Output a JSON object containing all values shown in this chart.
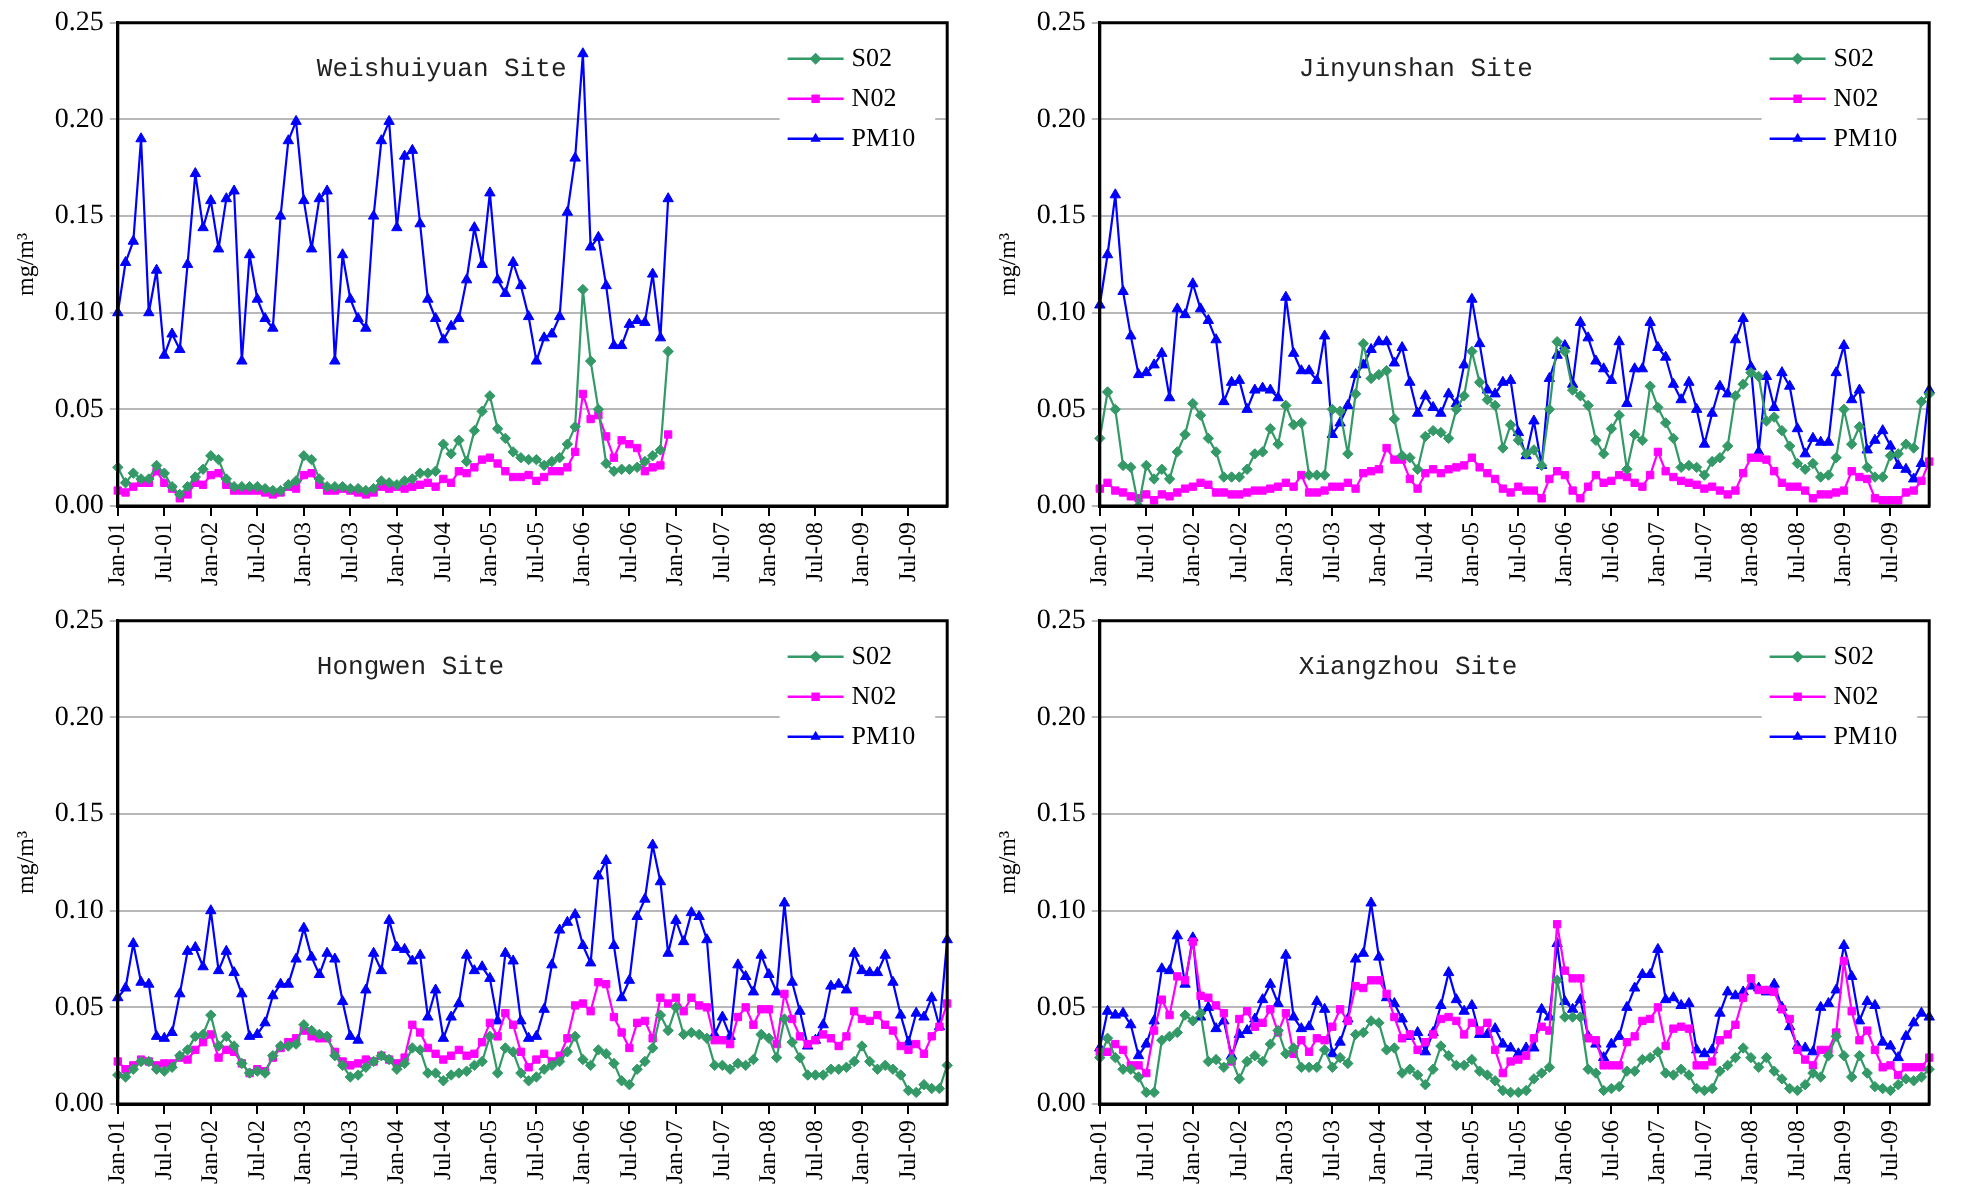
{
  "chart_data": [
    {
      "type": "line",
      "title": "Weishuiyuan Site",
      "ylabel": "mg/m³",
      "grid": "y",
      "legend": "top right",
      "categories": [
        "Jan-01",
        null,
        null,
        null,
        null,
        null,
        "Jul-01",
        null,
        null,
        null,
        null,
        null,
        "Jan-02",
        null,
        null,
        null,
        null,
        null,
        "Jul-02",
        null,
        null,
        null,
        null,
        null,
        "Jan-03",
        null,
        null,
        null,
        null,
        null,
        "Jul-03",
        null,
        null,
        null,
        null,
        null,
        "Jan-04",
        null,
        null,
        null,
        null,
        null,
        "Jul-04",
        null,
        null,
        null,
        null,
        null,
        "Jan-05",
        null,
        null,
        null,
        null,
        null,
        "Jul-05",
        null,
        null,
        null,
        null,
        null,
        "Jan-06",
        null,
        null,
        null,
        null,
        null,
        "Jul-06",
        null,
        null,
        null,
        null,
        null,
        "Jan-07",
        null,
        null,
        null,
        null,
        null,
        "Jul-07",
        null,
        null,
        null,
        null,
        null,
        "Jan-08",
        null,
        null,
        null,
        null,
        null,
        "Jul-08",
        null,
        null,
        null,
        null,
        null,
        "Jan-09",
        null,
        null,
        null,
        null,
        null,
        "Jul-09",
        null,
        null,
        null,
        null,
        null
      ],
      "ylim": [
        0,
        0.25
      ],
      "yticks": [
        {
          "value": 0,
          "label": "0.00"
        },
        {
          "value": 0.05,
          "label": "0.05"
        },
        {
          "value": 0.1,
          "label": "0.10"
        },
        {
          "value": 0.15,
          "label": "0.15"
        },
        {
          "value": 0.2,
          "label": "0.20"
        },
        {
          "value": 0.25,
          "label": "0.25"
        }
      ],
      "series": [
        {
          "name": "S02",
          "color": "#339966",
          "marker": "diamond",
          "values": [
            0.02,
            0.012,
            0.017,
            0.014,
            0.014,
            0.021,
            0.017,
            0.01,
            0.006,
            0.01,
            0.015,
            0.019,
            0.026,
            0.024,
            0.014,
            0.01,
            0.01,
            0.01,
            0.01,
            0.009,
            0.008,
            0.008,
            0.011,
            0.013,
            0.026,
            0.024,
            0.014,
            0.01,
            0.01,
            0.01,
            0.009,
            0.009,
            0.008,
            0.009,
            0.013,
            0.012,
            0.011,
            0.013,
            0.014,
            0.017,
            0.017,
            0.018,
            0.032,
            0.027,
            0.034,
            0.023,
            0.039,
            0.049,
            0.057,
            0.04,
            0.035,
            0.028,
            0.025,
            0.024,
            0.024,
            0.021,
            0.023,
            0.025,
            0.032,
            0.041,
            0.112,
            0.075,
            0.05,
            0.022,
            0.018,
            0.019,
            0.019,
            0.02,
            0.023,
            0.026,
            0.029,
            0.08,
            null,
            null,
            null,
            null,
            null,
            null,
            null,
            null,
            null,
            null,
            null,
            null,
            null,
            null,
            null,
            null,
            null,
            null,
            null,
            null,
            null,
            null,
            null,
            null,
            null,
            null,
            null,
            null,
            null,
            null,
            null,
            null,
            null,
            null,
            null,
            null
          ]
        },
        {
          "name": "N02",
          "color": "#ff00ff",
          "marker": "square",
          "values": [
            0.008,
            0.007,
            0.01,
            0.012,
            0.012,
            0.018,
            0.012,
            0.009,
            0.004,
            0.006,
            0.012,
            0.011,
            0.016,
            0.017,
            0.011,
            0.008,
            0.008,
            0.008,
            0.008,
            0.007,
            0.006,
            0.007,
            0.01,
            0.009,
            0.016,
            0.017,
            0.011,
            0.008,
            0.008,
            0.009,
            0.008,
            0.007,
            0.006,
            0.007,
            0.01,
            0.009,
            0.01,
            0.009,
            0.01,
            0.011,
            0.012,
            0.01,
            0.014,
            0.012,
            0.018,
            0.017,
            0.02,
            0.024,
            0.025,
            0.022,
            0.018,
            0.015,
            0.015,
            0.016,
            0.013,
            0.015,
            0.018,
            0.018,
            0.02,
            0.028,
            0.058,
            0.045,
            0.047,
            0.036,
            0.025,
            0.034,
            0.032,
            0.03,
            0.018,
            0.02,
            0.021,
            0.037,
            null,
            null,
            null,
            null,
            null,
            null,
            null,
            null,
            null,
            null,
            null,
            null,
            null,
            null,
            null,
            null,
            null,
            null,
            null,
            null,
            null,
            null,
            null,
            null,
            null,
            null,
            null,
            null,
            null,
            null,
            null,
            null,
            null,
            null,
            null,
            null
          ]
        },
        {
          "name": "PM10",
          "color": "#0000ff",
          "marker": "triangle",
          "values": [
            0.1,
            0.126,
            0.137,
            0.19,
            0.1,
            0.122,
            0.078,
            0.089,
            0.081,
            0.125,
            0.172,
            0.144,
            0.158,
            0.133,
            0.159,
            0.163,
            0.075,
            0.13,
            0.107,
            0.097,
            0.092,
            0.15,
            0.189,
            0.199,
            0.158,
            0.133,
            0.159,
            0.163,
            0.075,
            0.13,
            0.107,
            0.097,
            0.092,
            0.15,
            0.189,
            0.199,
            0.144,
            0.181,
            0.184,
            0.146,
            0.107,
            0.097,
            0.086,
            0.093,
            0.097,
            0.117,
            0.144,
            0.125,
            0.162,
            0.117,
            0.11,
            0.126,
            0.114,
            0.098,
            0.075,
            0.087,
            0.089,
            0.098,
            0.152,
            0.18,
            0.234,
            0.134,
            0.139,
            0.114,
            0.083,
            0.083,
            0.094,
            0.096,
            0.095,
            0.12,
            0.087,
            0.159,
            null,
            null,
            null,
            null,
            null,
            null,
            null,
            null,
            null,
            null,
            null,
            null,
            null,
            null,
            null,
            null,
            null,
            null,
            null,
            null,
            null,
            null,
            null,
            null,
            null,
            null,
            null,
            null,
            null,
            null,
            null,
            null,
            null,
            null,
            null,
            null
          ]
        }
      ]
    },
    {
      "type": "line",
      "title": "Jinyunshan Site",
      "ylabel": "mg/m³",
      "grid": "y",
      "legend": "top right",
      "categories": [
        "Jan-01",
        null,
        null,
        null,
        null,
        null,
        "Jul-01",
        null,
        null,
        null,
        null,
        null,
        "Jan-02",
        null,
        null,
        null,
        null,
        null,
        "Jul-02",
        null,
        null,
        null,
        null,
        null,
        "Jan-03",
        null,
        null,
        null,
        null,
        null,
        "Jul-03",
        null,
        null,
        null,
        null,
        null,
        "Jan-04",
        null,
        null,
        null,
        null,
        null,
        "Jul-04",
        null,
        null,
        null,
        null,
        null,
        "Jan-05",
        null,
        null,
        null,
        null,
        null,
        "Jul-05",
        null,
        null,
        null,
        null,
        null,
        "Jan-06",
        null,
        null,
        null,
        null,
        null,
        "Jul-06",
        null,
        null,
        null,
        null,
        null,
        "Jan-07",
        null,
        null,
        null,
        null,
        null,
        "Jul-07",
        null,
        null,
        null,
        null,
        null,
        "Jan-08",
        null,
        null,
        null,
        null,
        null,
        "Jul-08",
        null,
        null,
        null,
        null,
        null,
        "Jan-09",
        null,
        null,
        null,
        null,
        null,
        "Jul-09",
        null,
        null,
        null,
        null,
        null
      ],
      "ylim": [
        0,
        0.25
      ],
      "yticks": [
        {
          "value": 0,
          "label": "0.00"
        },
        {
          "value": 0.05,
          "label": "0.05"
        },
        {
          "value": 0.1,
          "label": "0.10"
        },
        {
          "value": 0.15,
          "label": "0.15"
        },
        {
          "value": 0.2,
          "label": "0.20"
        },
        {
          "value": 0.25,
          "label": "0.25"
        }
      ],
      "series": [
        {
          "name": "S02",
          "color": "#339966",
          "marker": "diamond",
          "values": [
            0.035,
            0.059,
            0.05,
            0.021,
            0.02,
            0.0,
            0.021,
            0.014,
            0.019,
            0.014,
            0.028,
            0.037,
            0.053,
            0.047,
            0.035,
            0.028,
            0.015,
            0.015,
            0.015,
            0.019,
            0.027,
            0.028,
            0.04,
            0.032,
            0.052,
            0.042,
            0.043,
            0.016,
            0.016,
            0.016,
            0.05,
            0.049,
            0.027,
            0.058,
            0.084,
            0.066,
            0.068,
            0.07,
            0.045,
            0.026,
            0.025,
            0.019,
            0.036,
            0.039,
            0.038,
            0.035,
            0.05,
            0.057,
            0.08,
            0.064,
            0.055,
            0.052,
            0.03,
            0.042,
            0.034,
            0.027,
            0.029,
            0.021,
            0.05,
            0.085,
            0.08,
            0.06,
            0.057,
            0.052,
            0.034,
            0.027,
            0.04,
            0.047,
            0.019,
            0.037,
            0.034,
            0.062,
            0.051,
            0.043,
            0.035,
            0.02,
            0.021,
            0.02,
            0.016,
            0.023,
            0.025,
            0.031,
            0.057,
            0.063,
            0.069,
            0.067,
            0.044,
            0.046,
            0.039,
            0.031,
            0.022,
            0.019,
            0.022,
            0.015,
            0.016,
            0.025,
            0.05,
            0.032,
            0.041,
            0.02,
            0.015,
            0.015,
            0.026,
            0.027,
            0.032,
            0.03,
            0.054,
            0.058
          ]
        },
        {
          "name": "N02",
          "color": "#ff00ff",
          "marker": "square",
          "values": [
            0.009,
            0.012,
            0.008,
            0.007,
            0.005,
            0.004,
            0.006,
            0.003,
            0.006,
            0.005,
            0.007,
            0.009,
            0.01,
            0.012,
            0.011,
            0.007,
            0.007,
            0.006,
            0.006,
            0.007,
            0.008,
            0.008,
            0.009,
            0.01,
            0.012,
            0.01,
            0.016,
            0.007,
            0.007,
            0.008,
            0.01,
            0.01,
            0.012,
            0.009,
            0.017,
            0.018,
            0.019,
            0.03,
            0.024,
            0.024,
            0.014,
            0.009,
            0.017,
            0.019,
            0.017,
            0.019,
            0.02,
            0.021,
            0.025,
            0.02,
            0.017,
            0.014,
            0.009,
            0.007,
            0.01,
            0.008,
            0.008,
            0.004,
            0.014,
            0.018,
            0.016,
            0.008,
            0.004,
            0.01,
            0.016,
            0.012,
            0.013,
            0.016,
            0.015,
            0.012,
            0.01,
            0.016,
            0.028,
            0.018,
            0.015,
            0.013,
            0.012,
            0.011,
            0.009,
            0.01,
            0.008,
            0.006,
            0.008,
            0.017,
            0.025,
            0.025,
            0.024,
            0.018,
            0.012,
            0.01,
            0.01,
            0.008,
            0.004,
            0.006,
            0.006,
            0.007,
            0.008,
            0.018,
            0.015,
            0.014,
            0.004,
            0.003,
            0.003,
            0.003,
            0.007,
            0.008,
            0.013,
            0.023
          ]
        },
        {
          "name": "PM10",
          "color": "#0000ff",
          "marker": "triangle",
          "values": [
            0.104,
            0.13,
            0.161,
            0.111,
            0.088,
            0.068,
            0.069,
            0.073,
            0.079,
            0.056,
            0.102,
            0.099,
            0.115,
            0.102,
            0.096,
            0.086,
            0.054,
            0.064,
            0.065,
            0.05,
            0.06,
            0.061,
            0.06,
            0.056,
            0.108,
            0.079,
            0.07,
            0.07,
            0.065,
            0.088,
            0.037,
            0.043,
            0.052,
            0.068,
            0.073,
            0.081,
            0.085,
            0.085,
            0.074,
            0.082,
            0.064,
            0.048,
            0.057,
            0.051,
            0.048,
            0.058,
            0.053,
            0.073,
            0.107,
            0.084,
            0.06,
            0.058,
            0.064,
            0.065,
            0.038,
            0.026,
            0.044,
            0.021,
            0.066,
            0.078,
            0.083,
            0.063,
            0.095,
            0.087,
            0.075,
            0.071,
            0.065,
            0.085,
            0.053,
            0.071,
            0.071,
            0.095,
            0.082,
            0.077,
            0.063,
            0.055,
            0.064,
            0.05,
            0.032,
            0.048,
            0.062,
            0.058,
            0.086,
            0.097,
            0.072,
            0.028,
            0.067,
            0.051,
            0.069,
            0.062,
            0.04,
            0.027,
            0.035,
            0.033,
            0.033,
            0.069,
            0.083,
            0.055,
            0.06,
            0.029,
            0.034,
            0.039,
            0.031,
            0.021,
            0.019,
            0.014,
            0.022,
            0.06
          ]
        }
      ]
    },
    {
      "type": "line",
      "title": "Hongwen Site",
      "ylabel": "mg/m³",
      "grid": "y",
      "legend": "top right",
      "categories": [
        "Jan-01",
        null,
        null,
        null,
        null,
        null,
        "Jul-01",
        null,
        null,
        null,
        null,
        null,
        "Jan-02",
        null,
        null,
        null,
        null,
        null,
        "Jul-02",
        null,
        null,
        null,
        null,
        null,
        "Jan-03",
        null,
        null,
        null,
        null,
        null,
        "Jul-03",
        null,
        null,
        null,
        null,
        null,
        "Jan-04",
        null,
        null,
        null,
        null,
        null,
        "Jul-04",
        null,
        null,
        null,
        null,
        null,
        "Jan-05",
        null,
        null,
        null,
        null,
        null,
        "Jul-05",
        null,
        null,
        null,
        null,
        null,
        "Jan-06",
        null,
        null,
        null,
        null,
        null,
        "Jul-06",
        null,
        null,
        null,
        null,
        null,
        "Jan-07",
        null,
        null,
        null,
        null,
        null,
        "Jul-07",
        null,
        null,
        null,
        null,
        null,
        "Jan-08",
        null,
        null,
        null,
        null,
        null,
        "Jul-08",
        null,
        null,
        null,
        null,
        null,
        "Jan-09",
        null,
        null,
        null,
        null,
        null,
        "Jul-09",
        null,
        null,
        null,
        null,
        null
      ],
      "ylim": [
        0,
        0.25
      ],
      "yticks": [
        {
          "value": 0,
          "label": "0.00"
        },
        {
          "value": 0.05,
          "label": "0.05"
        },
        {
          "value": 0.1,
          "label": "0.10"
        },
        {
          "value": 0.15,
          "label": "0.15"
        },
        {
          "value": 0.2,
          "label": "0.20"
        },
        {
          "value": 0.25,
          "label": "0.25"
        }
      ],
      "series": [
        {
          "name": "S02",
          "color": "#339966",
          "marker": "diamond",
          "values": [
            0.015,
            0.014,
            0.018,
            0.022,
            0.022,
            0.018,
            0.017,
            0.019,
            0.025,
            0.028,
            0.035,
            0.036,
            0.046,
            0.03,
            0.035,
            0.03,
            0.021,
            0.016,
            0.017,
            0.016,
            0.025,
            0.03,
            0.03,
            0.031,
            0.041,
            0.038,
            0.036,
            0.035,
            0.025,
            0.02,
            0.014,
            0.015,
            0.019,
            0.022,
            0.025,
            0.023,
            0.018,
            0.021,
            0.029,
            0.028,
            0.016,
            0.016,
            0.012,
            0.015,
            0.016,
            0.017,
            0.02,
            0.022,
            0.035,
            0.016,
            0.029,
            0.027,
            0.016,
            0.012,
            0.014,
            0.018,
            0.02,
            0.022,
            0.027,
            0.035,
            0.023,
            0.02,
            0.028,
            0.026,
            0.021,
            0.012,
            0.01,
            0.018,
            0.022,
            0.029,
            0.046,
            0.038,
            0.05,
            0.036,
            0.037,
            0.036,
            0.034,
            0.02,
            0.02,
            0.018,
            0.021,
            0.02,
            0.023,
            0.036,
            0.034,
            0.024,
            0.044,
            0.032,
            0.024,
            0.015,
            0.015,
            0.015,
            0.018,
            0.018,
            0.019,
            0.022,
            0.03,
            0.022,
            0.018,
            0.02,
            0.018,
            0.015,
            0.007,
            0.006,
            0.01,
            0.008,
            0.008,
            0.02
          ]
        },
        {
          "name": "N02",
          "color": "#ff00ff",
          "marker": "square",
          "values": [
            0.022,
            0.018,
            0.02,
            0.023,
            0.022,
            0.02,
            0.021,
            0.021,
            0.024,
            0.023,
            0.028,
            0.032,
            0.036,
            0.024,
            0.028,
            0.027,
            0.021,
            0.016,
            0.018,
            0.017,
            0.024,
            0.029,
            0.032,
            0.034,
            0.038,
            0.035,
            0.034,
            0.034,
            0.027,
            0.022,
            0.02,
            0.021,
            0.023,
            0.022,
            0.025,
            0.023,
            0.021,
            0.024,
            0.041,
            0.037,
            0.029,
            0.026,
            0.023,
            0.025,
            0.028,
            0.025,
            0.026,
            0.032,
            0.042,
            0.035,
            0.047,
            0.041,
            0.027,
            0.019,
            0.023,
            0.026,
            0.022,
            0.025,
            0.034,
            0.051,
            0.052,
            0.048,
            0.063,
            0.062,
            0.045,
            0.037,
            0.029,
            0.042,
            0.043,
            0.034,
            0.055,
            0.052,
            0.055,
            0.048,
            0.055,
            0.051,
            0.05,
            0.033,
            0.033,
            0.031,
            0.045,
            0.05,
            0.041,
            0.049,
            0.049,
            0.031,
            0.057,
            0.044,
            0.035,
            0.031,
            0.033,
            0.036,
            0.034,
            0.03,
            0.035,
            0.048,
            0.044,
            0.043,
            0.046,
            0.041,
            0.038,
            0.03,
            0.028,
            0.031,
            0.026,
            0.035,
            0.04,
            0.052
          ]
        },
        {
          "name": "PM10",
          "color": "#0000ff",
          "marker": "triangle",
          "values": [
            0.055,
            0.06,
            0.083,
            0.063,
            0.062,
            0.035,
            0.034,
            0.037,
            0.057,
            0.079,
            0.081,
            0.071,
            0.1,
            0.069,
            0.079,
            0.068,
            0.057,
            0.035,
            0.036,
            0.042,
            0.056,
            0.062,
            0.062,
            0.075,
            0.091,
            0.076,
            0.067,
            0.078,
            0.075,
            0.053,
            0.035,
            0.033,
            0.059,
            0.078,
            0.069,
            0.095,
            0.081,
            0.08,
            0.074,
            0.077,
            0.045,
            0.059,
            0.034,
            0.045,
            0.052,
            0.077,
            0.069,
            0.071,
            0.065,
            0.043,
            0.078,
            0.074,
            0.043,
            0.034,
            0.035,
            0.049,
            0.072,
            0.09,
            0.094,
            0.098,
            0.082,
            0.073,
            0.118,
            0.126,
            0.082,
            0.055,
            0.064,
            0.097,
            0.106,
            0.134,
            0.115,
            0.078,
            0.095,
            0.084,
            0.099,
            0.097,
            0.085,
            0.036,
            0.045,
            0.035,
            0.072,
            0.066,
            0.058,
            0.077,
            0.067,
            0.058,
            0.104,
            0.063,
            0.048,
            0.03,
            0.033,
            0.041,
            0.061,
            0.062,
            0.059,
            0.078,
            0.069,
            0.068,
            0.068,
            0.077,
            0.063,
            0.046,
            0.032,
            0.047,
            0.045,
            0.055,
            0.04,
            0.085
          ]
        }
      ]
    },
    {
      "type": "line",
      "title": "Xiangzhou Site",
      "ylabel": "mg/m³",
      "grid": "y",
      "legend": "top right",
      "categories": [
        "Jan-01",
        null,
        null,
        null,
        null,
        null,
        "Jul-01",
        null,
        null,
        null,
        null,
        null,
        "Jan-02",
        null,
        null,
        null,
        null,
        null,
        "Jul-02",
        null,
        null,
        null,
        null,
        null,
        "Jan-03",
        null,
        null,
        null,
        null,
        null,
        "Jul-03",
        null,
        null,
        null,
        null,
        null,
        "Jan-04",
        null,
        null,
        null,
        null,
        null,
        "Jul-04",
        null,
        null,
        null,
        null,
        null,
        "Jan-05",
        null,
        null,
        null,
        null,
        null,
        "Jul-05",
        null,
        null,
        null,
        null,
        null,
        "Jan-06",
        null,
        null,
        null,
        null,
        null,
        "Jul-06",
        null,
        null,
        null,
        null,
        null,
        "Jan-07",
        null,
        null,
        null,
        null,
        null,
        "Jul-07",
        null,
        null,
        null,
        null,
        null,
        "Jan-08",
        null,
        null,
        null,
        null,
        null,
        "Jul-08",
        null,
        null,
        null,
        null,
        null,
        "Jan-09",
        null,
        null,
        null,
        null,
        null,
        "Jul-09",
        null,
        null,
        null,
        null,
        null
      ],
      "ylim": [
        0,
        0.25
      ],
      "yticks": [
        {
          "value": 0,
          "label": "0.00"
        },
        {
          "value": 0.05,
          "label": "0.05"
        },
        {
          "value": 0.1,
          "label": "0.10"
        },
        {
          "value": 0.15,
          "label": "0.15"
        },
        {
          "value": 0.2,
          "label": "0.20"
        },
        {
          "value": 0.25,
          "label": "0.25"
        }
      ],
      "series": [
        {
          "name": "S02",
          "color": "#339966",
          "marker": "diamond",
          "values": [
            0.024,
            0.034,
            0.024,
            0.018,
            0.018,
            0.014,
            0.006,
            0.006,
            0.033,
            0.035,
            0.037,
            0.046,
            0.043,
            0.047,
            0.022,
            0.023,
            0.019,
            0.023,
            0.013,
            0.022,
            0.025,
            0.022,
            0.031,
            0.038,
            0.026,
            0.029,
            0.019,
            0.019,
            0.019,
            0.028,
            0.019,
            0.024,
            0.021,
            0.036,
            0.037,
            0.043,
            0.042,
            0.028,
            0.029,
            0.016,
            0.018,
            0.015,
            0.01,
            0.018,
            0.03,
            0.025,
            0.02,
            0.02,
            0.023,
            0.017,
            0.015,
            0.012,
            0.007,
            0.006,
            0.006,
            0.007,
            0.013,
            0.016,
            0.019,
            0.064,
            0.045,
            0.045,
            0.045,
            0.018,
            0.016,
            0.007,
            0.008,
            0.009,
            0.017,
            0.017,
            0.023,
            0.024,
            0.027,
            0.016,
            0.015,
            0.018,
            0.015,
            0.008,
            0.007,
            0.008,
            0.017,
            0.02,
            0.024,
            0.029,
            0.024,
            0.019,
            0.024,
            0.017,
            0.013,
            0.008,
            0.007,
            0.01,
            0.016,
            0.014,
            0.025,
            0.035,
            0.025,
            0.014,
            0.025,
            0.016,
            0.009,
            0.008,
            0.007,
            0.01,
            0.013,
            0.012,
            0.014,
            0.018
          ]
        },
        {
          "name": "N02",
          "color": "#ff00ff",
          "marker": "square",
          "values": [
            0.027,
            0.027,
            0.031,
            0.028,
            0.02,
            0.02,
            0.016,
            0.038,
            0.054,
            0.046,
            0.066,
            0.064,
            0.084,
            0.056,
            0.055,
            0.051,
            0.047,
            0.022,
            0.044,
            0.048,
            0.04,
            0.042,
            0.049,
            0.037,
            0.047,
            0.026,
            0.033,
            0.027,
            0.034,
            0.033,
            0.04,
            0.049,
            0.043,
            0.061,
            0.06,
            0.064,
            0.064,
            0.057,
            0.045,
            0.034,
            0.036,
            0.028,
            0.032,
            0.036,
            0.044,
            0.045,
            0.043,
            0.036,
            0.042,
            0.038,
            0.042,
            0.028,
            0.016,
            0.022,
            0.023,
            0.025,
            0.034,
            0.04,
            0.038,
            0.093,
            0.069,
            0.065,
            0.065,
            0.034,
            0.033,
            0.02,
            0.02,
            0.02,
            0.032,
            0.035,
            0.043,
            0.044,
            0.05,
            0.03,
            0.039,
            0.04,
            0.039,
            0.02,
            0.02,
            0.022,
            0.033,
            0.036,
            0.041,
            0.055,
            0.065,
            0.059,
            0.059,
            0.058,
            0.049,
            0.044,
            0.028,
            0.023,
            0.02,
            0.028,
            0.028,
            0.037,
            0.074,
            0.048,
            0.033,
            0.038,
            0.028,
            0.019,
            0.02,
            0.015,
            0.019,
            0.019,
            0.019,
            0.024
          ]
        },
        {
          "name": "PM10",
          "color": "#0000ff",
          "marker": "triangle",
          "values": [
            0.029,
            0.048,
            0.046,
            0.047,
            0.041,
            0.025,
            0.031,
            0.043,
            0.07,
            0.069,
            0.087,
            0.062,
            0.086,
            0.045,
            0.05,
            0.039,
            0.043,
            0.025,
            0.036,
            0.038,
            0.044,
            0.054,
            0.062,
            0.052,
            0.077,
            0.045,
            0.039,
            0.04,
            0.053,
            0.049,
            0.026,
            0.032,
            0.044,
            0.075,
            0.078,
            0.104,
            0.076,
            0.055,
            0.052,
            0.044,
            0.035,
            0.037,
            0.027,
            0.037,
            0.051,
            0.068,
            0.054,
            0.048,
            0.051,
            0.036,
            0.036,
            0.039,
            0.031,
            0.029,
            0.026,
            0.029,
            0.029,
            0.049,
            0.045,
            0.083,
            0.053,
            0.049,
            0.054,
            0.035,
            0.031,
            0.024,
            0.031,
            0.035,
            0.05,
            0.06,
            0.067,
            0.067,
            0.08,
            0.054,
            0.055,
            0.051,
            0.052,
            0.028,
            0.026,
            0.028,
            0.047,
            0.058,
            0.056,
            0.058,
            0.061,
            0.06,
            0.058,
            0.062,
            0.05,
            0.04,
            0.03,
            0.029,
            0.027,
            0.05,
            0.052,
            0.059,
            0.082,
            0.066,
            0.043,
            0.053,
            0.051,
            0.032,
            0.03,
            0.024,
            0.035,
            0.042,
            0.047,
            0.045
          ]
        }
      ]
    }
  ]
}
